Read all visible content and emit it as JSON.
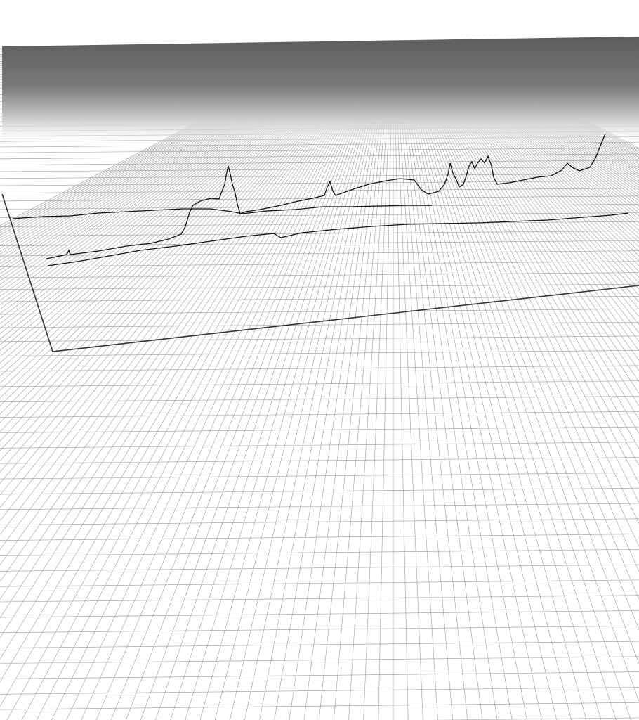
{
  "viewer": {
    "background_color": "#ffffff",
    "grid_line_color": "#9a9a9a",
    "horizon_fade_color": "#5a5a5a",
    "path_color": "#111111",
    "frame_color": "#333333"
  },
  "scene": {
    "view": "perspective",
    "ground": "grid",
    "icon": "grid-plane-icon"
  }
}
